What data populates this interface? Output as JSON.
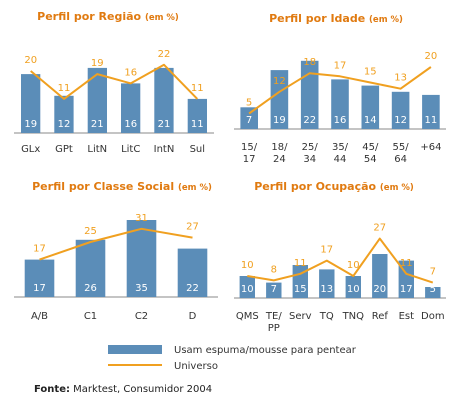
{
  "colors": {
    "bar": "#5b8db8",
    "line": "#f0a020",
    "title": "#e07a10",
    "axis": "#888888"
  },
  "legend": {
    "bar_label": "Usam espuma/mousse para pentear",
    "line_label": "Universo"
  },
  "source": {
    "label": "Fonte:",
    "text": " Marktest, Consumidor 2004"
  },
  "chart_data": [
    {
      "type": "bar",
      "title": "Perfil por Região",
      "title_suffix": "(em %)",
      "categories": [
        [
          "GLx"
        ],
        [
          "GPt"
        ],
        [
          "LitN"
        ],
        [
          "LitC"
        ],
        [
          "IntN"
        ],
        [
          "Sul"
        ]
      ],
      "series": [
        {
          "name": "Usam espuma/mousse para pentear",
          "type": "bar",
          "values": [
            19,
            12,
            21,
            16,
            21,
            11
          ]
        },
        {
          "name": "Universo",
          "type": "line",
          "values": [
            20,
            11,
            19,
            16,
            22,
            11
          ]
        }
      ]
    },
    {
      "type": "bar",
      "title": "Perfil por Idade",
      "title_suffix": "(em %)",
      "categories": [
        [
          "15/",
          "17"
        ],
        [
          "18/",
          "24"
        ],
        [
          "25/",
          "34"
        ],
        [
          "35/",
          "44"
        ],
        [
          "45/",
          "54"
        ],
        [
          "55/",
          "64"
        ],
        [
          "+64"
        ]
      ],
      "series": [
        {
          "name": "Usam espuma/mousse para pentear",
          "type": "bar",
          "values": [
            7,
            19,
            22,
            16,
            14,
            12,
            11
          ]
        },
        {
          "name": "Universo",
          "type": "line",
          "values": [
            5,
            12,
            18,
            17,
            15,
            13,
            20
          ]
        }
      ]
    },
    {
      "type": "bar",
      "title": "Perfil por Classe Social",
      "title_suffix": "(em %)",
      "categories": [
        [
          "A/B"
        ],
        [
          "C1"
        ],
        [
          "C2"
        ],
        [
          "D"
        ]
      ],
      "series": [
        {
          "name": "Usam espuma/mousse para pentear",
          "type": "bar",
          "values": [
            17,
            26,
            35,
            22
          ]
        },
        {
          "name": "Universo",
          "type": "line",
          "values": [
            17,
            25,
            31,
            27
          ]
        }
      ]
    },
    {
      "type": "bar",
      "title": "Perfil por Ocupação",
      "title_suffix": "(em %)",
      "categories": [
        [
          "QMS"
        ],
        [
          "TE/",
          "PP"
        ],
        [
          "Serv"
        ],
        [
          "TQ"
        ],
        [
          "TNQ"
        ],
        [
          "Ref"
        ],
        [
          "Est"
        ],
        [
          "Dom"
        ]
      ],
      "series": [
        {
          "name": "Usam espuma/mousse para pentear",
          "type": "bar",
          "values": [
            10,
            7,
            15,
            13,
            10,
            20,
            17,
            5
          ]
        },
        {
          "name": "Universo",
          "type": "line",
          "values": [
            10,
            8,
            11,
            17,
            10,
            27,
            11,
            7
          ]
        }
      ]
    }
  ]
}
